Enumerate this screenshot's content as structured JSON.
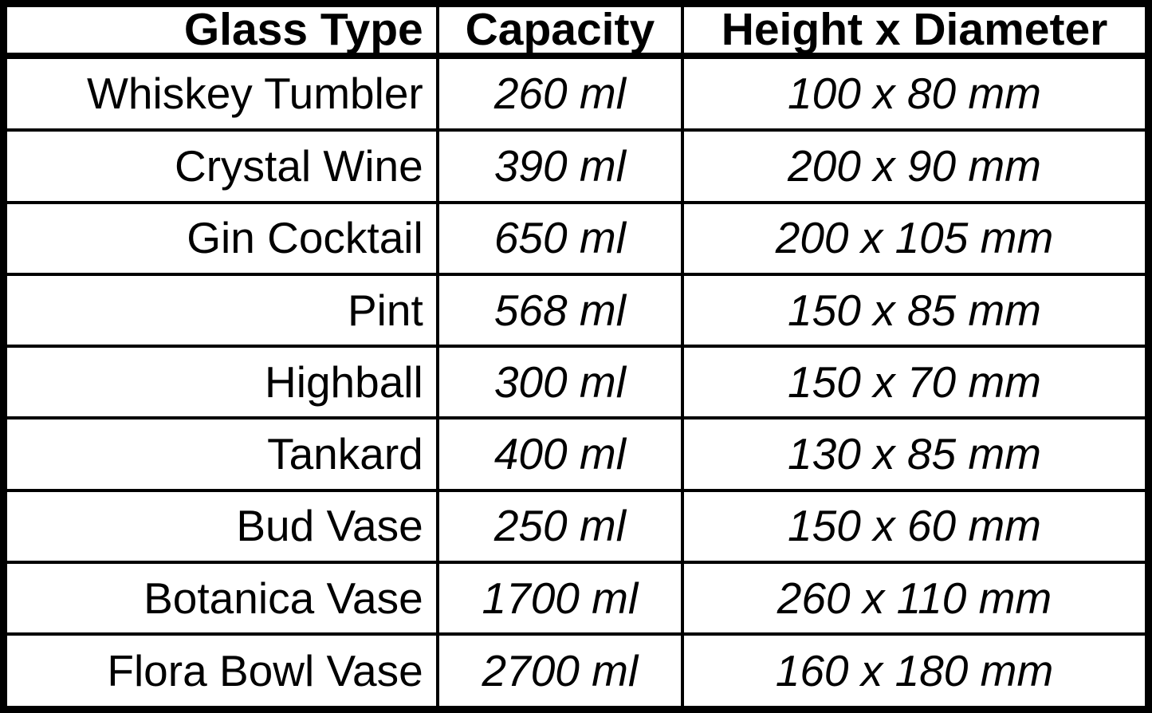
{
  "colors": {
    "border": "#000000",
    "background": "#ffffff",
    "text": "#000000"
  },
  "table": {
    "headers": [
      "Glass Type",
      "Capacity",
      "Height x Diameter"
    ],
    "rows": [
      {
        "glass_type": "Whiskey Tumbler",
        "capacity": "260 ml",
        "dimensions": "100 x 80 mm"
      },
      {
        "glass_type": "Crystal Wine",
        "capacity": "390 ml",
        "dimensions": "200 x 90 mm"
      },
      {
        "glass_type": "Gin Cocktail",
        "capacity": "650 ml",
        "dimensions": "200 x 105 mm"
      },
      {
        "glass_type": "Pint",
        "capacity": "568 ml",
        "dimensions": "150 x 85 mm"
      },
      {
        "glass_type": "Highball",
        "capacity": "300 ml",
        "dimensions": "150 x 70 mm"
      },
      {
        "glass_type": "Tankard",
        "capacity": "400 ml",
        "dimensions": "130 x 85 mm"
      },
      {
        "glass_type": "Bud Vase",
        "capacity": "250 ml",
        "dimensions": "150 x 60 mm"
      },
      {
        "glass_type": "Botanica Vase",
        "capacity": "1700 ml",
        "dimensions": "260 x 110 mm"
      },
      {
        "glass_type": "Flora Bowl Vase",
        "capacity": "2700 ml",
        "dimensions": "160 x 180 mm"
      }
    ]
  }
}
